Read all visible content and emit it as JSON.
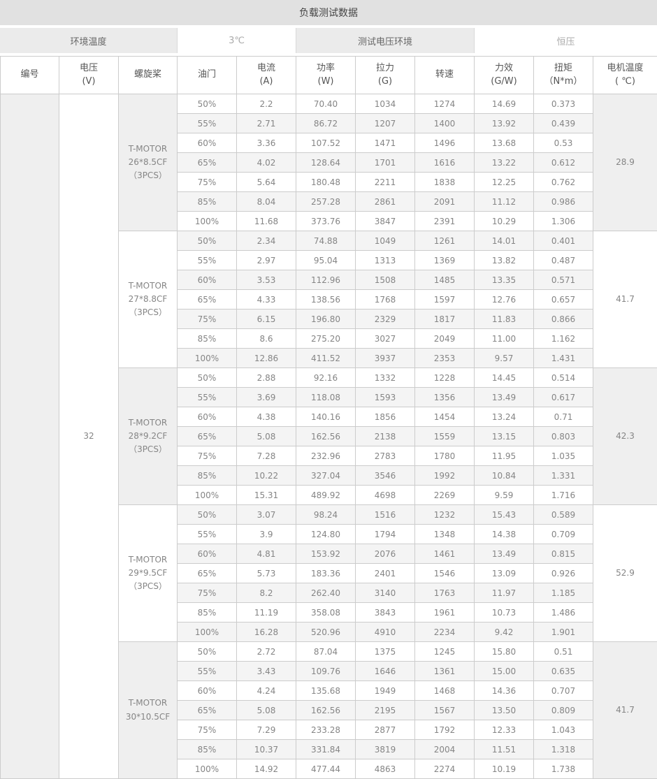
{
  "title": "负载测试数据",
  "env_header": {
    "ambient_label": "环境温度",
    "ambient_value": "3℃",
    "voltage_env_label": "测试电压环境",
    "voltage_env_value": "恒压"
  },
  "colors": {
    "title_bar_bg": "#e1e1e1",
    "env_gray_bg": "#ebebeb",
    "stripe_bg": "#f4f4f4",
    "merged_gray_bg": "#efefef",
    "border": "#cccccc",
    "text_dark": "#444444",
    "text_muted": "#858585",
    "text_light": "#aaaaaa"
  },
  "chart_data": {
    "type": "table",
    "title": "负载测试数据",
    "columns": [
      "编号",
      "电压\n(V)",
      "螺旋桨",
      "油门",
      "电流\n(A)",
      "功率\n(W)",
      "拉力\n(G)",
      "转速",
      "力效\n(G/W)",
      "扭矩\n（N*m）",
      "电机温度\n( ℃)"
    ],
    "serial_value": "",
    "voltage_value": "32",
    "row_fields": [
      "throttle",
      "current_A",
      "power_W",
      "thrust_G",
      "rpm",
      "efficiency_GW",
      "torque_Nm"
    ],
    "groups": [
      {
        "propeller": "T-MOTOR\n26*8.5CF\n（3PCS）",
        "motor_temp": "28.9",
        "rows": [
          [
            "50%",
            "2.2",
            "70.40",
            "1034",
            "1274",
            "14.69",
            "0.373"
          ],
          [
            "55%",
            "2.71",
            "86.72",
            "1207",
            "1400",
            "13.92",
            "0.439"
          ],
          [
            "60%",
            "3.36",
            "107.52",
            "1471",
            "1496",
            "13.68",
            "0.53"
          ],
          [
            "65%",
            "4.02",
            "128.64",
            "1701",
            "1616",
            "13.22",
            "0.612"
          ],
          [
            "75%",
            "5.64",
            "180.48",
            "2211",
            "1838",
            "12.25",
            "0.762"
          ],
          [
            "85%",
            "8.04",
            "257.28",
            "2861",
            "2091",
            "11.12",
            "0.986"
          ],
          [
            "100%",
            "11.68",
            "373.76",
            "3847",
            "2391",
            "10.29",
            "1.306"
          ]
        ]
      },
      {
        "propeller": "T-MOTOR\n27*8.8CF\n（3PCS）",
        "motor_temp": "41.7",
        "rows": [
          [
            "50%",
            "2.34",
            "74.88",
            "1049",
            "1261",
            "14.01",
            "0.401"
          ],
          [
            "55%",
            "2.97",
            "95.04",
            "1313",
            "1369",
            "13.82",
            "0.487"
          ],
          [
            "60%",
            "3.53",
            "112.96",
            "1508",
            "1485",
            "13.35",
            "0.571"
          ],
          [
            "65%",
            "4.33",
            "138.56",
            "1768",
            "1597",
            "12.76",
            "0.657"
          ],
          [
            "75%",
            "6.15",
            "196.80",
            "2329",
            "1817",
            "11.83",
            "0.866"
          ],
          [
            "85%",
            "8.6",
            "275.20",
            "3027",
            "2049",
            "11.00",
            "1.162"
          ],
          [
            "100%",
            "12.86",
            "411.52",
            "3937",
            "2353",
            "9.57",
            "1.431"
          ]
        ]
      },
      {
        "propeller": "T-MOTOR\n28*9.2CF\n（3PCS）",
        "motor_temp": "42.3",
        "rows": [
          [
            "50%",
            "2.88",
            "92.16",
            "1332",
            "1228",
            "14.45",
            "0.514"
          ],
          [
            "55%",
            "3.69",
            "118.08",
            "1593",
            "1356",
            "13.49",
            "0.617"
          ],
          [
            "60%",
            "4.38",
            "140.16",
            "1856",
            "1454",
            "13.24",
            "0.71"
          ],
          [
            "65%",
            "5.08",
            "162.56",
            "2138",
            "1559",
            "13.15",
            "0.803"
          ],
          [
            "75%",
            "7.28",
            "232.96",
            "2783",
            "1780",
            "11.95",
            "1.035"
          ],
          [
            "85%",
            "10.22",
            "327.04",
            "3546",
            "1992",
            "10.84",
            "1.331"
          ],
          [
            "100%",
            "15.31",
            "489.92",
            "4698",
            "2269",
            "9.59",
            "1.716"
          ]
        ]
      },
      {
        "propeller": "T-MOTOR\n29*9.5CF\n（3PCS）",
        "motor_temp": "52.9",
        "rows": [
          [
            "50%",
            "3.07",
            "98.24",
            "1516",
            "1232",
            "15.43",
            "0.589"
          ],
          [
            "55%",
            "3.9",
            "124.80",
            "1794",
            "1348",
            "14.38",
            "0.709"
          ],
          [
            "60%",
            "4.81",
            "153.92",
            "2076",
            "1461",
            "13.49",
            "0.815"
          ],
          [
            "65%",
            "5.73",
            "183.36",
            "2401",
            "1546",
            "13.09",
            "0.926"
          ],
          [
            "75%",
            "8.2",
            "262.40",
            "3140",
            "1763",
            "11.97",
            "1.185"
          ],
          [
            "85%",
            "11.19",
            "358.08",
            "3843",
            "1961",
            "10.73",
            "1.486"
          ],
          [
            "100%",
            "16.28",
            "520.96",
            "4910",
            "2234",
            "9.42",
            "1.901"
          ]
        ]
      },
      {
        "propeller": "T-MOTOR\n30*10.5CF",
        "motor_temp": "41.7",
        "rows": [
          [
            "50%",
            "2.72",
            "87.04",
            "1375",
            "1245",
            "15.80",
            "0.51"
          ],
          [
            "55%",
            "3.43",
            "109.76",
            "1646",
            "1361",
            "15.00",
            "0.635"
          ],
          [
            "60%",
            "4.24",
            "135.68",
            "1949",
            "1468",
            "14.36",
            "0.707"
          ],
          [
            "65%",
            "5.08",
            "162.56",
            "2195",
            "1567",
            "13.50",
            "0.809"
          ],
          [
            "75%",
            "7.29",
            "233.28",
            "2877",
            "1792",
            "12.33",
            "1.043"
          ],
          [
            "85%",
            "10.37",
            "331.84",
            "3819",
            "2004",
            "11.51",
            "1.318"
          ],
          [
            "100%",
            "14.92",
            "477.44",
            "4863",
            "2274",
            "10.19",
            "1.738"
          ]
        ]
      }
    ]
  }
}
